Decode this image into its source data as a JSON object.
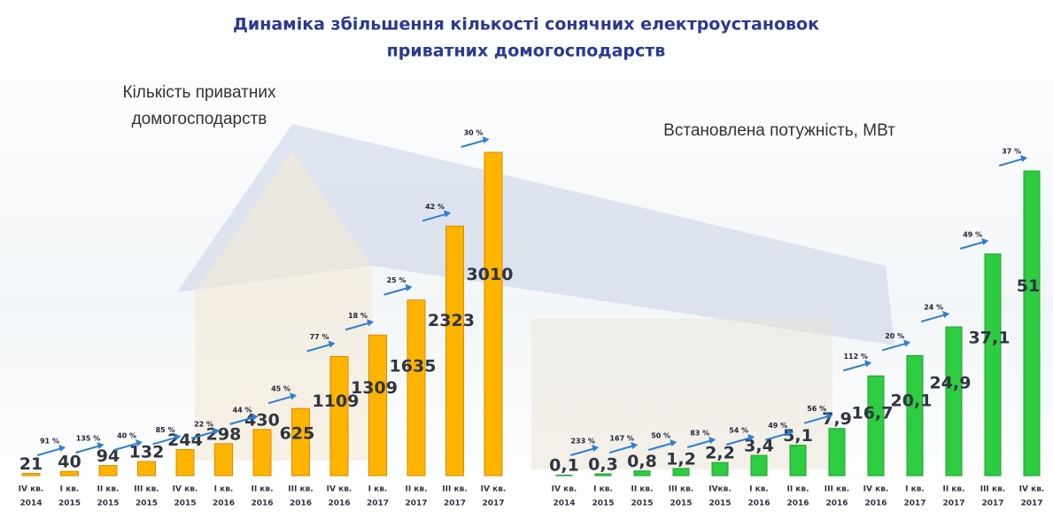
{
  "title": [
    "Динаміка збільшення кількості сонячних електроустановок",
    "приватних домогосподарств"
  ],
  "chart_data": [
    {
      "type": "bar",
      "title": [
        "Кількість приватних",
        "домогосподарств"
      ],
      "categories": [
        [
          "IV кв.",
          "2014"
        ],
        [
          "I кв.",
          "2015"
        ],
        [
          "II кв.",
          "2015"
        ],
        [
          "III кв.",
          "2015"
        ],
        [
          "IV кв.",
          "2015"
        ],
        [
          "I кв.",
          "2016"
        ],
        [
          "II кв.",
          "2016"
        ],
        [
          "III кв.",
          "2016"
        ],
        [
          "IV кв.",
          "2016"
        ],
        [
          "I кв.",
          "2017"
        ],
        [
          "II кв.",
          "2017"
        ],
        [
          "III кв.",
          "2017"
        ],
        [
          "IV кв.",
          "2017"
        ]
      ],
      "values": [
        21,
        40,
        94,
        132,
        244,
        298,
        430,
        625,
        1109,
        1309,
        1635,
        2323,
        3010
      ],
      "growth_labels": [
        "91 %",
        "135 %",
        "40 %",
        "85 %",
        "22 %",
        "44 %",
        "45 %",
        "77 %",
        "18 %",
        "25 %",
        "42 %",
        "30 %"
      ],
      "color": "#ffb400"
    },
    {
      "type": "bar",
      "title": [
        "Встановлена потужність, МВт"
      ],
      "categories": [
        [
          "IV кв.",
          "2014"
        ],
        [
          "I кв.",
          "2015"
        ],
        [
          "II кв.",
          "2015"
        ],
        [
          "III кв.",
          "2015"
        ],
        [
          "IVкв.",
          "2015"
        ],
        [
          "I кв.",
          "2016"
        ],
        [
          "II кв.",
          "2016"
        ],
        [
          "III кв.",
          "2016"
        ],
        [
          "IV кв.",
          "2016"
        ],
        [
          "I кв.",
          "2017"
        ],
        [
          "II кв.",
          "2017"
        ],
        [
          "III кв.",
          "2017"
        ],
        [
          "IV кв.",
          "2017"
        ]
      ],
      "values": [
        0.1,
        0.3,
        0.8,
        1.2,
        2.2,
        3.4,
        5.1,
        7.9,
        16.7,
        20.1,
        24.9,
        37.1,
        51
      ],
      "value_labels": [
        "0,1",
        "0,3",
        "0,8",
        "1,2",
        "2,2",
        "3,4",
        "5,1",
        "7,9",
        "16,7",
        "20,1",
        "24,9",
        "37,1",
        "51"
      ],
      "growth_labels": [
        "233 %",
        "167 %",
        "50 %",
        "83 %",
        "54 %",
        "49 %",
        "56 %",
        "112 %",
        "20 %",
        "24 %",
        "49 %",
        "37 %"
      ],
      "color": "#2ecc40"
    }
  ]
}
